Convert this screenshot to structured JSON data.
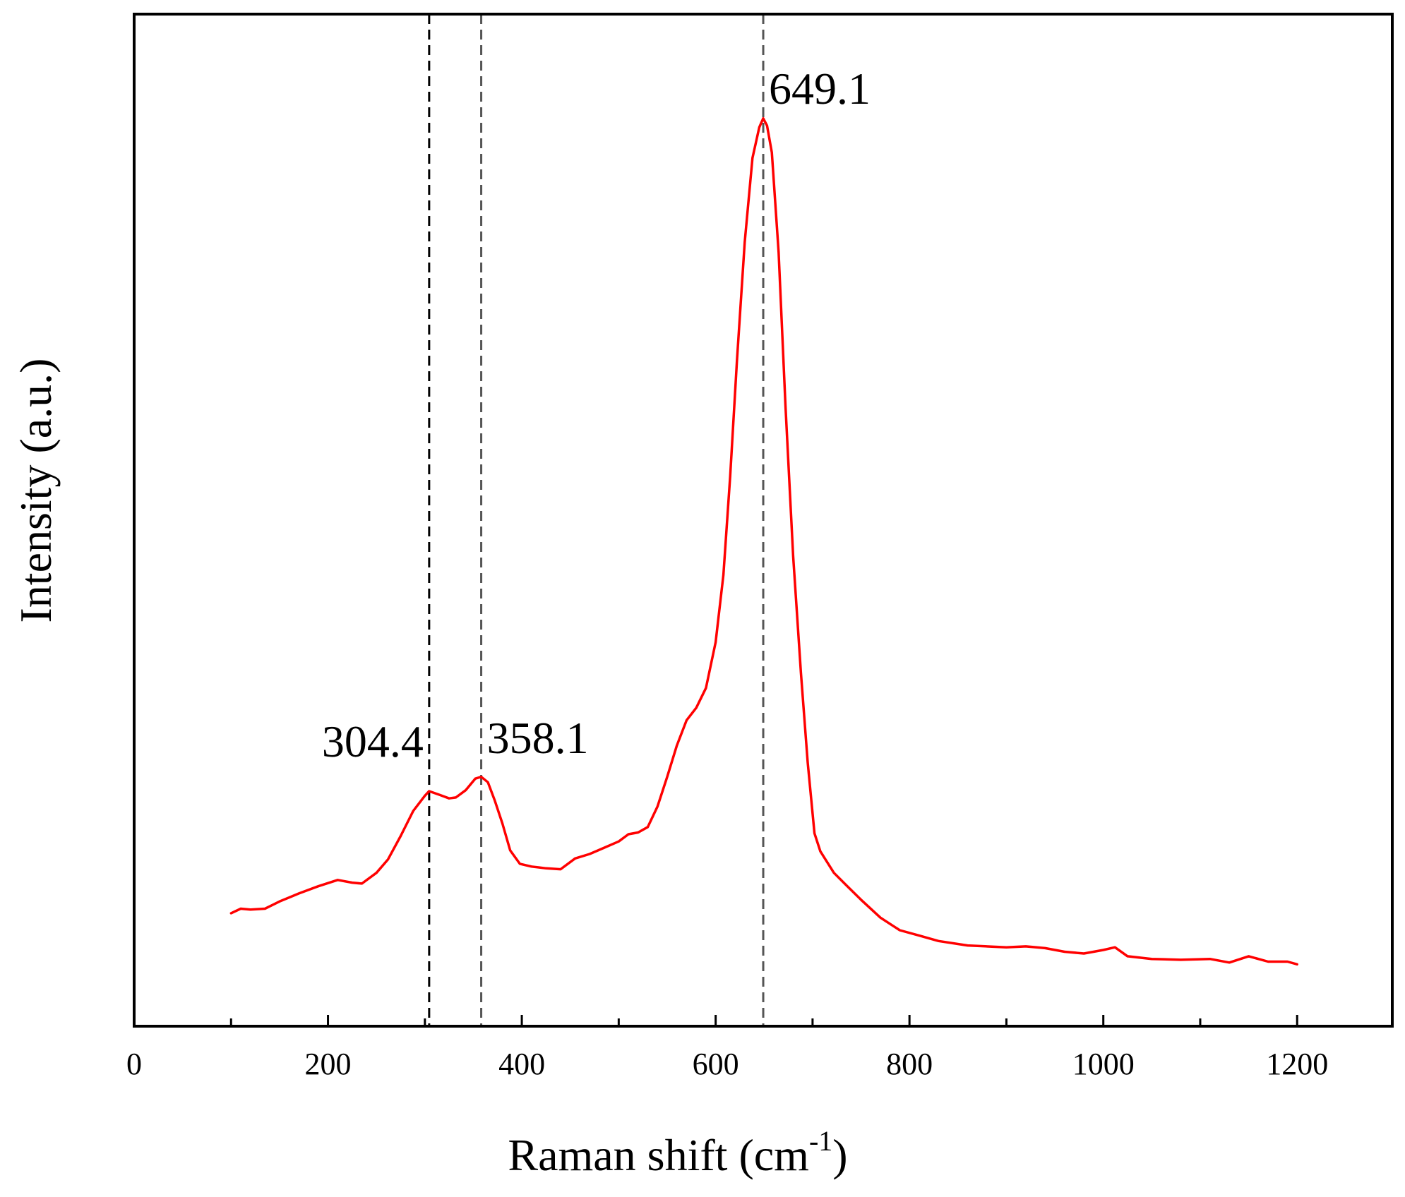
{
  "chart_data": {
    "type": "line",
    "title": "",
    "xlabel": "Raman shift (cm",
    "xlabel_superscript": "-1",
    "xlabel_suffix": ")",
    "ylabel": "Intensity (a.u.)",
    "xlim": [
      0,
      1300
    ],
    "ylim": [
      0,
      1
    ],
    "x_ticks": [
      0,
      200,
      400,
      600,
      800,
      1000,
      1200
    ],
    "x_tick_labels": [
      "0",
      "200",
      "400",
      "600",
      "800",
      "1000",
      "1200"
    ],
    "y_ticks_shown": false,
    "grid": false,
    "line_color": "#ff0000",
    "series": [
      {
        "x": [
          100,
          110,
          120,
          135,
          150,
          170,
          190,
          210,
          225,
          235,
          250,
          262,
          275,
          288,
          300,
          304.4,
          315,
          325,
          332,
          342,
          352,
          358.1,
          365,
          372,
          380,
          388,
          398,
          410,
          425,
          440,
          455,
          470,
          485,
          500,
          510,
          520,
          530,
          540,
          550,
          560,
          570,
          580,
          590,
          600,
          608,
          615,
          622,
          630,
          638,
          645,
          649.1,
          653,
          658,
          665,
          672,
          680,
          688,
          695,
          702,
          708,
          715,
          722,
          735,
          750,
          770,
          790,
          810,
          830,
          860,
          900,
          920,
          940,
          960,
          980,
          1000,
          1012,
          1025,
          1050,
          1080,
          1110,
          1130,
          1150,
          1170,
          1190,
          1200
        ],
        "y": [
          0.126,
          0.131,
          0.13,
          0.131,
          0.139,
          0.148,
          0.156,
          0.163,
          0.16,
          0.159,
          0.171,
          0.186,
          0.212,
          0.24,
          0.257,
          0.262,
          0.258,
          0.254,
          0.255,
          0.263,
          0.276,
          0.278,
          0.272,
          0.252,
          0.226,
          0.196,
          0.181,
          0.178,
          0.176,
          0.175,
          0.187,
          0.192,
          0.199,
          0.206,
          0.214,
          0.216,
          0.222,
          0.245,
          0.278,
          0.313,
          0.341,
          0.355,
          0.377,
          0.428,
          0.503,
          0.613,
          0.742,
          0.874,
          0.968,
          1.002,
          1.012,
          1.004,
          0.974,
          0.863,
          0.692,
          0.524,
          0.394,
          0.294,
          0.215,
          0.195,
          0.183,
          0.171,
          0.157,
          0.141,
          0.121,
          0.107,
          0.101,
          0.095,
          0.09,
          0.088,
          0.089,
          0.087,
          0.083,
          0.081,
          0.085,
          0.088,
          0.078,
          0.075,
          0.074,
          0.075,
          0.071,
          0.078,
          0.072,
          0.072,
          0.069
        ]
      }
    ],
    "reference_lines": [
      {
        "x": 304.4,
        "label": "304.4"
      },
      {
        "x": 358.1,
        "label": "358.1"
      },
      {
        "x": 649.1,
        "label": "649.1"
      }
    ]
  }
}
